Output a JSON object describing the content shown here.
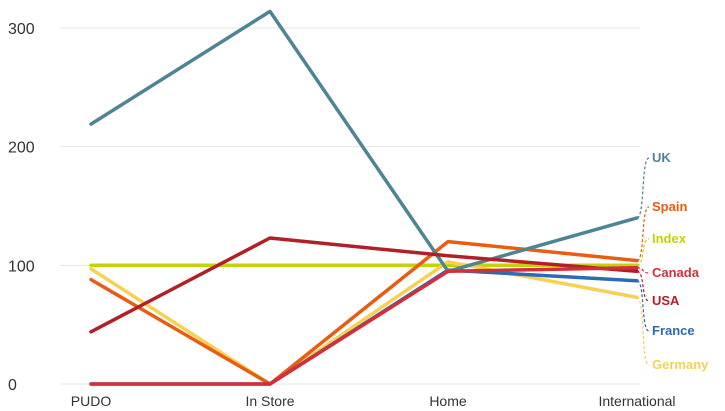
{
  "chart_data": {
    "type": "line",
    "categories": [
      "PUDO",
      "In Store",
      "Home",
      "International"
    ],
    "ylim": [
      0,
      320
    ],
    "yticks": [
      0,
      100,
      200,
      300
    ],
    "grid": true,
    "legend": "right",
    "series": [
      {
        "name": "Index",
        "color": "#c5d10a",
        "values": [
          100,
          100,
          100,
          100
        ]
      },
      {
        "name": "Germany",
        "color": "#f6d154",
        "values": [
          97,
          0,
          103,
          73
        ]
      },
      {
        "name": "Spain",
        "color": "#e85d13",
        "values": [
          88,
          0,
          120,
          104
        ]
      },
      {
        "name": "France",
        "color": "#2f6ab3",
        "values": [
          0,
          0,
          96,
          87
        ]
      },
      {
        "name": "UK",
        "color": "#4e8594",
        "values": [
          219,
          314,
          95,
          140
        ]
      },
      {
        "name": "USA",
        "color": "#b31f27",
        "values": [
          44,
          123,
          108,
          95
        ]
      },
      {
        "name": "Canada",
        "color": "#d32f3a",
        "values": [
          0,
          0,
          95,
          98
        ]
      }
    ]
  }
}
